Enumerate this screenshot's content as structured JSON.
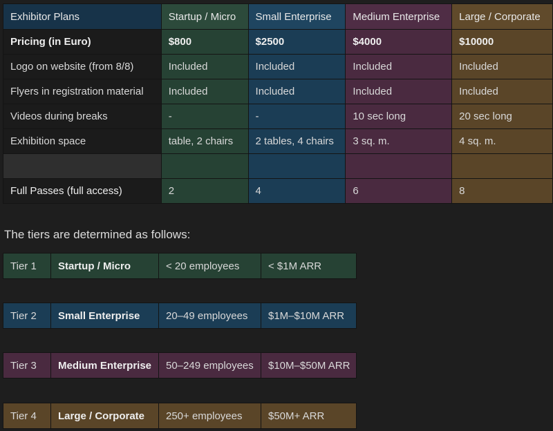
{
  "plans": {
    "headers": [
      "Exhibitor Plans",
      "Startup / Micro",
      "Small Enterprise",
      "Medium Enterprise",
      "Large / Corporate"
    ],
    "rows": [
      [
        "Pricing (in Euro)",
        "$800",
        "$2500",
        "$4000",
        "$10000"
      ],
      [
        "Logo on website (from 8/8)",
        "Included",
        "Included",
        "Included",
        "Included"
      ],
      [
        "Flyers in registration material",
        "Included",
        "Included",
        "Included",
        "Included"
      ],
      [
        "Videos during breaks",
        "-",
        "-",
        "10 sec long",
        "20 sec long"
      ],
      [
        "Exhibition space",
        "table, 2 chairs",
        "2 tables, 4 chairs",
        "3 sq. m.",
        "4 sq. m."
      ],
      [
        "",
        "",
        "",
        "",
        ""
      ],
      [
        "Full Passes (full access)",
        "2",
        "4",
        "6",
        "8"
      ]
    ]
  },
  "intro_text": "The tiers are determined as follows:",
  "tiers": [
    [
      "Tier 1",
      "Startup / Micro",
      "< 20 employees",
      "< $1M ARR"
    ],
    [
      "Tier 2",
      "Small Enterprise",
      "20–49 employees",
      "$1M–$10M ARR"
    ],
    [
      "Tier 3",
      "Medium Enterprise",
      "50–249 employees",
      "$10M–$50M ARR"
    ],
    [
      "Tier 4",
      "Large / Corporate",
      "250+ employees",
      "$50M+ ARR"
    ]
  ],
  "colors": {
    "startup": "#264234",
    "small": "#1b3d55",
    "medium": "#4a2a40",
    "large": "#5a4528"
  }
}
